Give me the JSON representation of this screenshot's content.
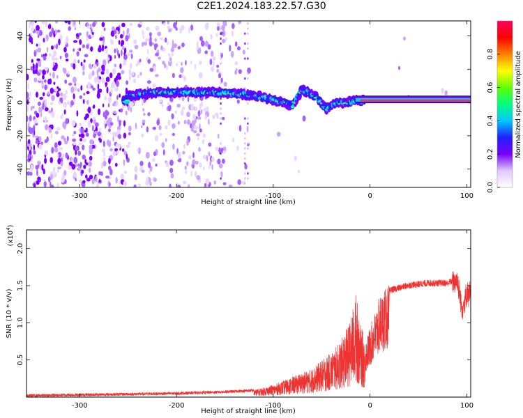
{
  "title": "C2E1.2024.183.22.57.G30",
  "chart_data": [
    {
      "type": "heatmap",
      "xlabel": "Height of straight line (km)",
      "ylabel": "Frequency (Hz)",
      "xlim": [
        -355,
        104
      ],
      "ylim": [
        -51,
        49
      ],
      "x_ticks": [
        -300,
        -200,
        -100,
        0,
        100
      ],
      "x_tick_labels": [
        "-300",
        "-200",
        "-100",
        "0",
        "100"
      ],
      "y_ticks": [
        -40,
        -20,
        0,
        20,
        40
      ],
      "y_tick_labels": [
        "-40",
        "-20",
        "0",
        "20",
        "40"
      ],
      "colorbar": {
        "label": "Normalized spectral amplitude",
        "range": [
          0,
          1
        ],
        "ticks": [
          0.0,
          0.2,
          0.4,
          0.6,
          0.8
        ],
        "tick_labels": [
          "0.0",
          "0.2",
          "0.4",
          "0.6",
          "0.8"
        ],
        "colors": [
          "#ffffff",
          "#e0c8ff",
          "#7a00ff",
          "#2020ff",
          "#00c8ff",
          "#00ff80",
          "#60ff00",
          "#ffff00",
          "#ff8000",
          "#ff0000",
          "#ff0060"
        ]
      },
      "ridge": [
        {
          "x": -250,
          "y": 4
        },
        {
          "x": -220,
          "y": 6
        },
        {
          "x": -190,
          "y": 6
        },
        {
          "x": -160,
          "y": 6
        },
        {
          "x": -130,
          "y": 5
        },
        {
          "x": -110,
          "y": 3
        },
        {
          "x": -95,
          "y": 1
        },
        {
          "x": -80,
          "y": -2
        },
        {
          "x": -70,
          "y": 8
        },
        {
          "x": -55,
          "y": 3
        },
        {
          "x": -45,
          "y": -4
        },
        {
          "x": -35,
          "y": 0
        },
        {
          "x": -25,
          "y": 0
        },
        {
          "x": -15,
          "y": 1
        },
        {
          "x": 0,
          "y": 1
        },
        {
          "x": 50,
          "y": 1
        },
        {
          "x": 104,
          "y": 1
        }
      ]
    },
    {
      "type": "line",
      "xlabel": "Height of straight line (km)",
      "ylabel": "SNR (10 * v/v)",
      "y_multiplier_label": "(x10",
      "y_multiplier_exponent": "4",
      "xlim": [
        -355,
        104
      ],
      "ylim": [
        0,
        22500
      ],
      "x_ticks": [
        -300,
        -200,
        -100,
        0,
        100
      ],
      "x_tick_labels": [
        "-300",
        "-200",
        "-100",
        "0",
        "100"
      ],
      "y_ticks": [
        5000,
        10000,
        15000,
        20000
      ],
      "y_tick_labels": [
        "0.5",
        "1.0",
        "1.5",
        "2.0"
      ],
      "line_color": "#ee3333",
      "series": [
        {
          "x": [
            -355,
            -300,
            -250,
            -200,
            -150,
            -120,
            -100,
            -80,
            -60,
            -40,
            -30,
            -20,
            -15,
            -12,
            -10,
            -5,
            0,
            10,
            20,
            40,
            60,
            80,
            90,
            95,
            100,
            104
          ],
          "y": [
            200,
            300,
            400,
            500,
            700,
            900,
            1500,
            2500,
            3500,
            5500,
            7000,
            9500,
            13000,
            11000,
            9000,
            7000,
            9000,
            13000,
            14500,
            15200,
            15500,
            15500,
            16000,
            12000,
            14000,
            14000
          ]
        }
      ]
    }
  ]
}
